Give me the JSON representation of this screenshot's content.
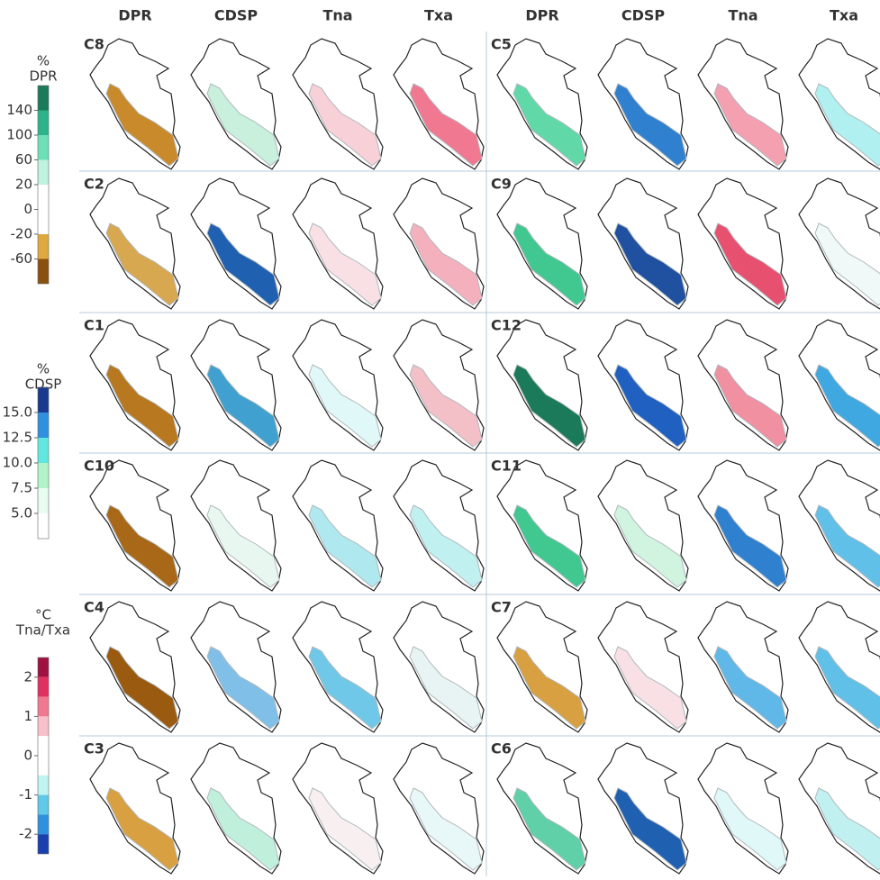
{
  "columns": [
    "DPR",
    "CDSP",
    "Tna",
    "Txa",
    "DPR",
    "CDSP",
    "Tna",
    "Txa"
  ],
  "panels": [
    {
      "label": "C8",
      "colors": [
        "#c88a2a",
        "#c8f0dc",
        "#f8d0d8",
        "#f07890"
      ]
    },
    {
      "label": "C5",
      "colors": [
        "#60d8a8",
        "#3080d0",
        "#f4a0b0",
        "#b0f0f0"
      ]
    },
    {
      "label": "C2",
      "colors": [
        "#d8a850",
        "#2060b0",
        "#f8e0e4",
        "#f4b0bc"
      ]
    },
    {
      "label": "C9",
      "colors": [
        "#40c890",
        "#2050a0",
        "#e85070",
        "#f0f8f8"
      ]
    },
    {
      "label": "C1",
      "colors": [
        "#b87820",
        "#40a0d0",
        "#e0f8f8",
        "#f4c0c8"
      ]
    },
    {
      "label": "C12",
      "colors": [
        "#1a7a5a",
        "#2060c0",
        "#f090a0",
        "#40a8e0"
      ]
    },
    {
      "label": "C10",
      "colors": [
        "#a86818",
        "#e8f8f0",
        "#b0e8f0",
        "#c0f0f0"
      ]
    },
    {
      "label": "C11",
      "colors": [
        "#40c890",
        "#d0f4e0",
        "#3080d0",
        "#60c0e8"
      ]
    },
    {
      "label": "C4",
      "colors": [
        "#9a5a10",
        "#80c0e8",
        "#70c8e8",
        "#e8f4f4"
      ]
    },
    {
      "label": "C7",
      "colors": [
        "#d8a040",
        "#f8e0e4",
        "#60b8e8",
        "#60c0e8"
      ]
    },
    {
      "label": "C3",
      "colors": [
        "#d8a040",
        "#c0f0dc",
        "#f8f0f0",
        "#e8f8f8"
      ]
    },
    {
      "label": "C6",
      "colors": [
        "#60d0a8",
        "#2060b0",
        "#e0f8f8",
        "#c0f0f0"
      ]
    }
  ],
  "colorbars": [
    {
      "title": [
        "%",
        "DPR"
      ],
      "ticks": [
        140,
        100,
        60,
        20,
        0,
        -20,
        -60
      ],
      "colors": [
        "#1a7a5a",
        "#2db38a",
        "#6ee0b8",
        "#c0f2e0",
        "#ffffff",
        "#ffffff",
        "#e0a840",
        "#8a5010"
      ]
    },
    {
      "title": [
        "%",
        "CDSP"
      ],
      "ticks": [
        {
          "value": 15,
          "label": "15.0"
        },
        {
          "value": 12.5,
          "label": "12.5"
        },
        {
          "value": 10,
          "label": "10.0"
        },
        {
          "value": 7.5,
          "label": "7.5"
        },
        {
          "value": 5,
          "label": "5.0"
        }
      ],
      "colors": [
        "#1a3a90",
        "#3090e0",
        "#60e8e0",
        "#b0f4c8",
        "#e8fcf0",
        "#ffffff"
      ]
    },
    {
      "title": [
        "°C",
        "Tna/Txa"
      ],
      "ticks": [
        2,
        1,
        0,
        -1,
        -2
      ],
      "colors": [
        "#a01040",
        "#e03060",
        "#f07890",
        "#f8c0c8",
        "#ffffff",
        "#ffffff",
        "#c0f4f0",
        "#60c8e8",
        "#3090e0",
        "#1a40b0"
      ]
    }
  ]
}
